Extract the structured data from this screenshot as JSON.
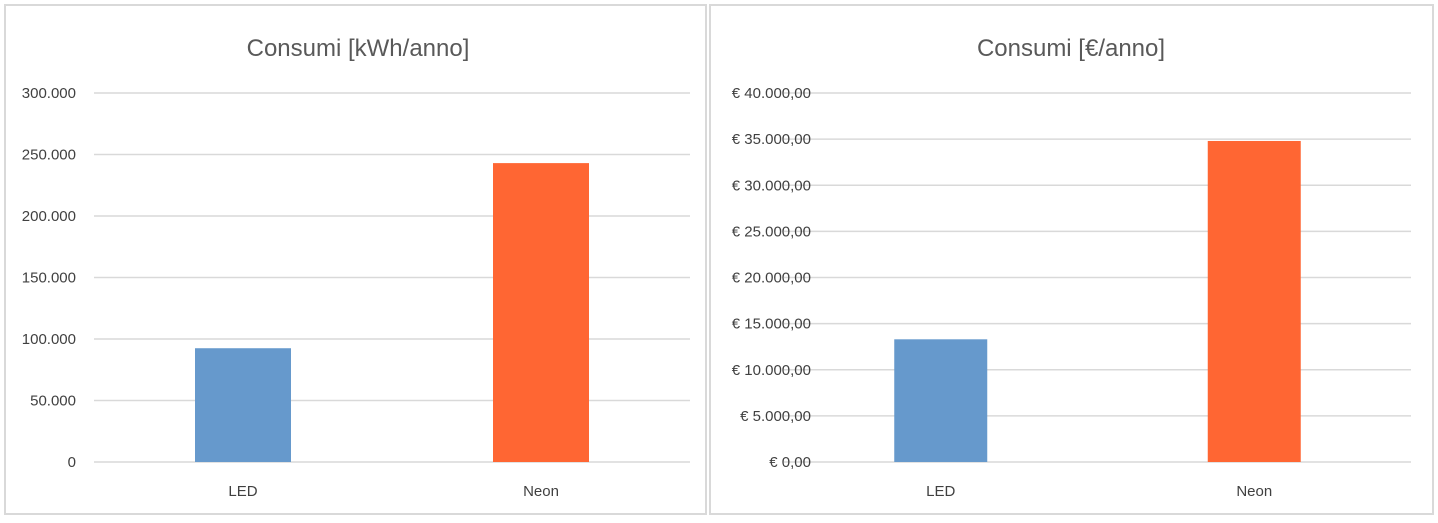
{
  "chart_data": [
    {
      "type": "bar",
      "title": "Consumi [kWh/anno]",
      "categories": [
        "LED",
        "Neon"
      ],
      "values": [
        92500,
        243000
      ],
      "colors": [
        "#6699cc",
        "#ff6633"
      ],
      "ylim": [
        0,
        300000
      ],
      "yticks": [
        0,
        50000,
        100000,
        150000,
        200000,
        250000,
        300000
      ],
      "ytick_labels": [
        "0",
        "50.000",
        "100.000",
        "150.000",
        "200.000",
        "250.000",
        "300.000"
      ],
      "xlabel": "",
      "ylabel": "",
      "grid": true,
      "legend": "none"
    },
    {
      "type": "bar",
      "title": "Consumi [€/anno]",
      "categories": [
        "LED",
        "Neon"
      ],
      "values": [
        13300,
        34800
      ],
      "colors": [
        "#6699cc",
        "#ff6633"
      ],
      "ylim": [
        0,
        40000
      ],
      "yticks": [
        0,
        5000,
        10000,
        15000,
        20000,
        25000,
        30000,
        35000,
        40000
      ],
      "ytick_labels": [
        "€ 0,00",
        "€ 5.000,00",
        "€ 10.000,00",
        "€ 15.000,00",
        "€ 20.000,00",
        "€ 25.000,00",
        "€ 30.000,00",
        "€ 35.000,00",
        "€ 40.000,00"
      ],
      "xlabel": "",
      "ylabel": "",
      "grid": true,
      "legend": "none"
    }
  ]
}
